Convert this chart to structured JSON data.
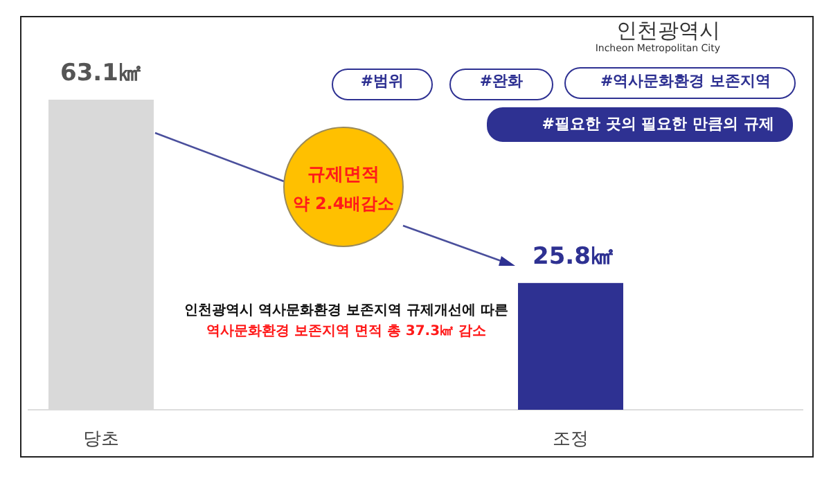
{
  "chart_data": {
    "type": "bar",
    "categories": [
      "당초",
      "조정"
    ],
    "values": [
      63.1,
      25.8
    ],
    "colors": [
      "#d9d9d9",
      "#2e3192"
    ],
    "value_labels": [
      "63.1㎢",
      "25.8㎢"
    ],
    "annotations": [
      "인천광역시",
      "Incheon Metropolitan City",
      "#범위",
      "#완화",
      "#역사문화환경 보존지역",
      "#필요한 곳의 필요한 만큼의 규제",
      "규제면적",
      "약 2.4배감소",
      "인천광역시 역사문화환경 보존지역 규제개선에 따른",
      "역사문화환경 보존지역 면적 총 37.3㎢ 감소"
    ],
    "data_labels": false
  }
}
